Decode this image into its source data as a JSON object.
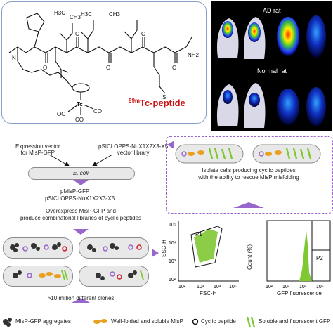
{
  "peptide_panel": {
    "title": "99mTc-peptide",
    "title_sup": "99m",
    "title_main": "Tc-peptide",
    "atoms": {
      "n": "N",
      "h": "H",
      "o": "O",
      "s": "S",
      "tc": "Tc",
      "oc": "OC",
      "co": "CO",
      "h3c": "H3C",
      "ch3": "CH3",
      "nh2": "NH2"
    }
  },
  "scan_panel": {
    "label_ad": "AD rat",
    "label_normal": "Normal rat"
  },
  "workflow": {
    "expression_vector": "Expression vector\nfor MisP-GFP",
    "library_vector": "pSICLOPPS-NuX1X2X3-X5\nvector library",
    "ecoli": "E. coli",
    "pmisp": "pMisP-GFP",
    "psiclopps": "pSICLOPPS-NuX1X2X3-X5",
    "overexpress": "Overexpress MisP-GFP and\nproduce combinatorial libraries of cyclic peptides",
    "clones": ">10 million different clones",
    "isolate": "Isolate cells producing cyclic peptides\nwith the ability to rescue MisP misfolding"
  },
  "flow_plot": {
    "ylabel": "SSC-H",
    "xlabel": "FSC-H",
    "gate": "P1",
    "ticks": [
      "10²",
      "10³",
      "10⁴",
      "10⁵"
    ]
  },
  "hist_plot": {
    "ylabel": "Count (%)",
    "xlabel": "GFP fluorescence",
    "gate": "P2",
    "ticks": [
      "10²",
      "10³",
      "10⁴",
      "10⁵"
    ]
  },
  "legend": {
    "aggregates": "MisP-GFP aggregates",
    "folded": "Well-folded and soluble MisP",
    "cyclic": "Cyclic peptide",
    "fluorescent": "Soluble and fluorescent GFP"
  },
  "colors": {
    "panel_border": "#8aa0c8",
    "accent_purple": "#9966cc",
    "gfp_green": "#7ec832",
    "tc_red": "#cc1111",
    "aggregate_dark": "#333333",
    "orange": "#e8a020"
  }
}
